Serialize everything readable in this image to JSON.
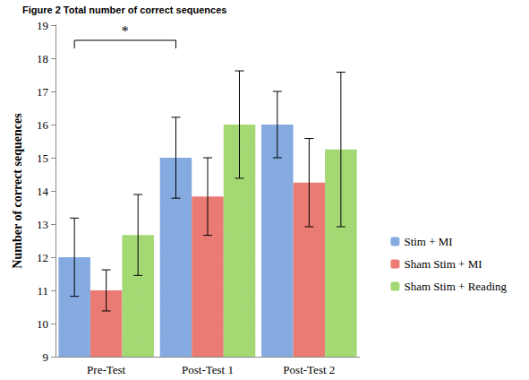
{
  "chart_data": {
    "type": "bar",
    "title": "Figure 2 Total number of correct sequences",
    "y_label": "Number of correct sequences",
    "categories": [
      "Pre-Test",
      "Post-Test 1",
      "Post-Test 2"
    ],
    "series": [
      {
        "name": "Stim + MI",
        "color": "#7ea6df",
        "values": [
          12,
          15,
          16
        ],
        "errors": [
          1.18,
          1.22,
          1.0
        ]
      },
      {
        "name": "Sham Stim + MI",
        "color": "#e8746c",
        "values": [
          11,
          13.83,
          14.25
        ],
        "errors": [
          0.62,
          1.17,
          1.33
        ]
      },
      {
        "name": "Sham Stim + Reading",
        "color": "#9fd66c",
        "values": [
          12.67,
          16,
          15.25
        ],
        "errors": [
          1.22,
          1.62,
          2.33
        ]
      }
    ],
    "ylim": [
      9,
      19
    ],
    "yticks": [
      9,
      10,
      11,
      12,
      13,
      14,
      15,
      16,
      17,
      18,
      19
    ],
    "grid": false,
    "legend": "right",
    "annotations": [
      {
        "text": "*",
        "from": "Pre-Test",
        "to": "Post-Test 1",
        "series": "Stim + MI"
      }
    ]
  }
}
